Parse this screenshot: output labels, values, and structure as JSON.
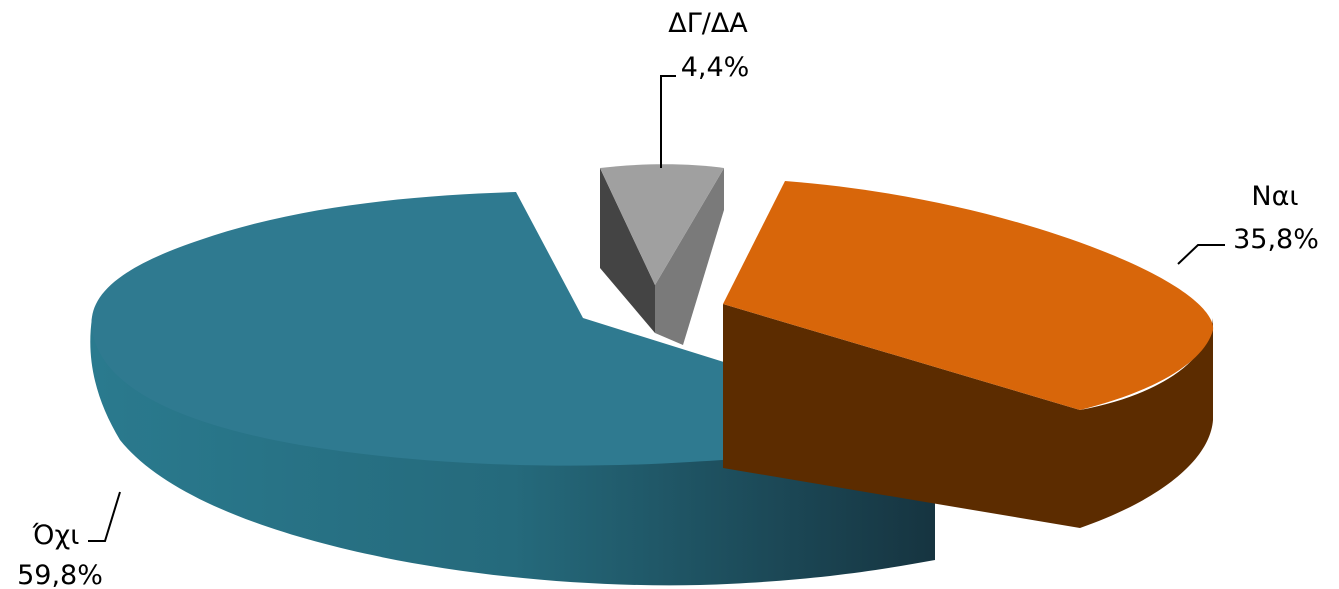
{
  "chart_data": {
    "type": "pie",
    "title": "",
    "style": "3d-exploded",
    "slices": [
      {
        "label": "Ναι",
        "value": 35.8,
        "value_label": "35,8%",
        "color": "#d8660a",
        "side_color": "#5c2c00"
      },
      {
        "label": "Όχι",
        "value": 59.8,
        "value_label": "59,8%",
        "color": "#2f7a90",
        "side_color": "#1f5566"
      },
      {
        "label": "ΔΓ/ΔΑ",
        "value": 4.4,
        "value_label": "4,4%",
        "color": "#a0a0a0",
        "side_color": "#505050"
      }
    ]
  }
}
